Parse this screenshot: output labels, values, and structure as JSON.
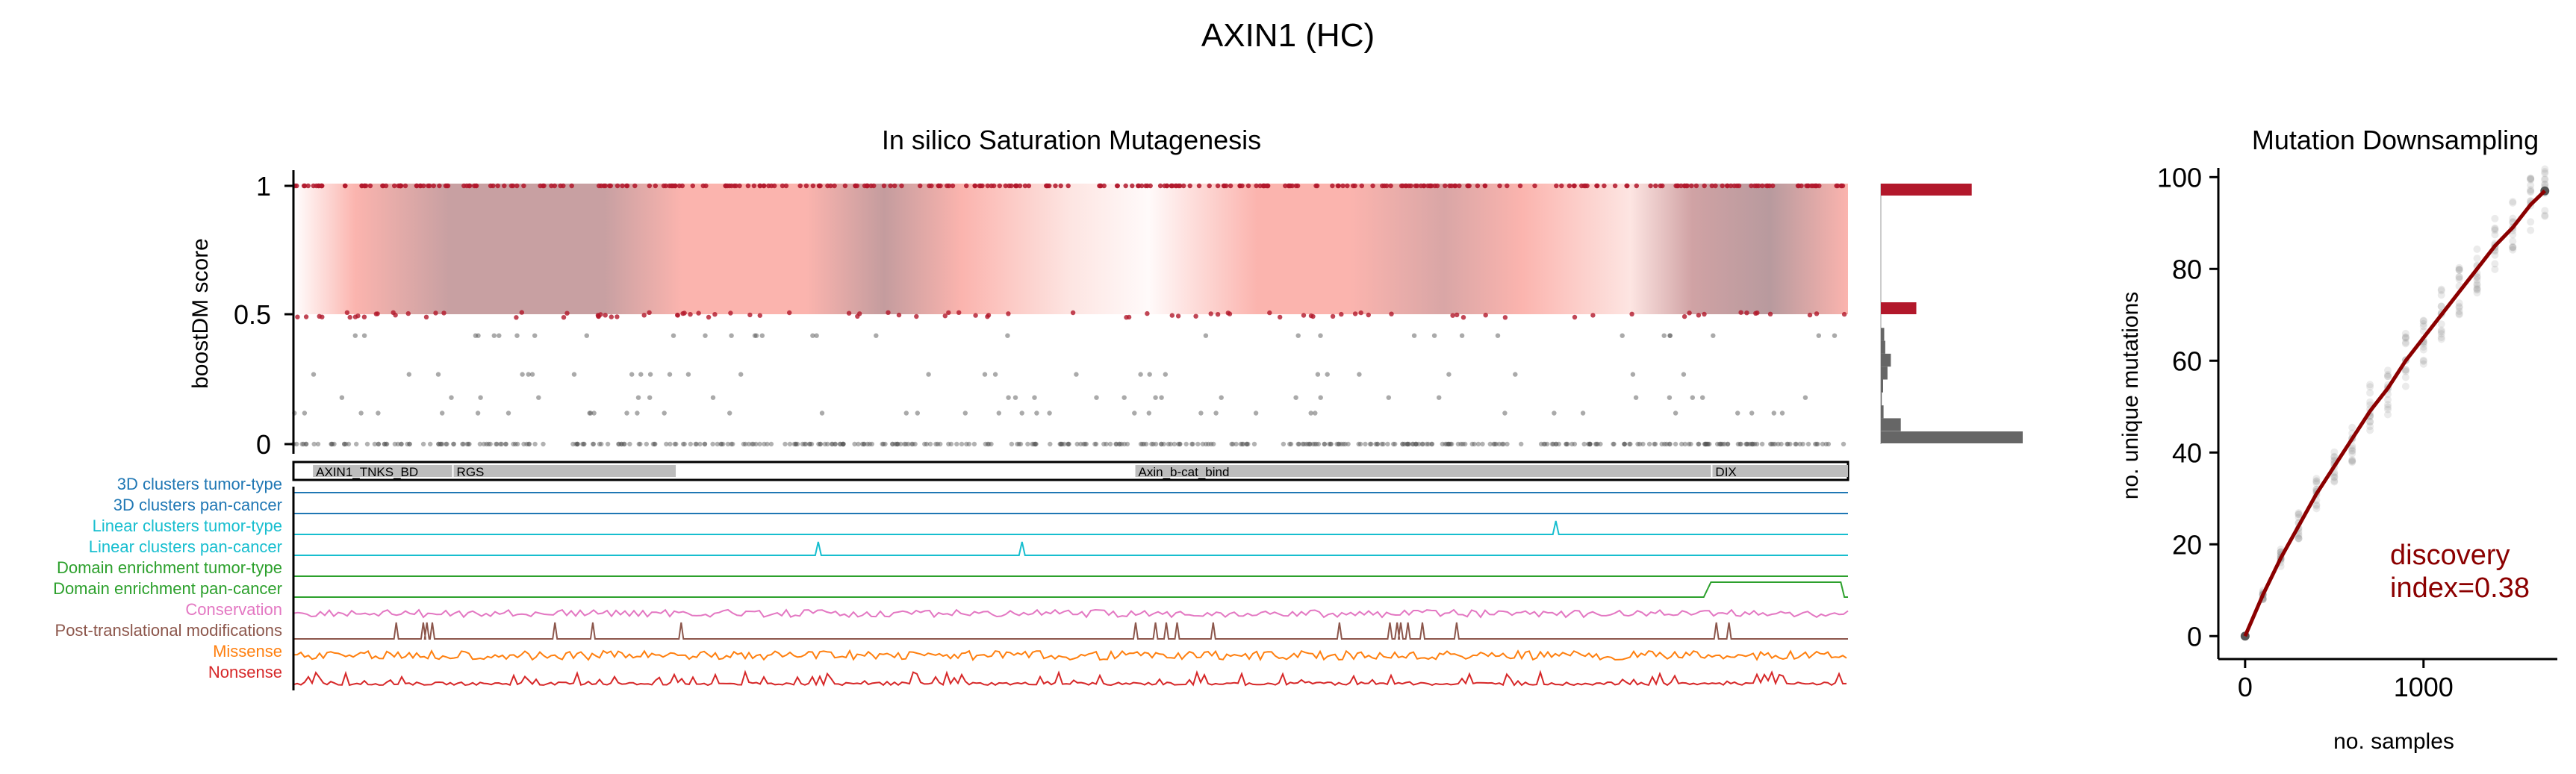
{
  "figure": {
    "title": "AXIN1 (HC)"
  },
  "chart_data": [
    {
      "type": "scatter",
      "panel": "in-silico-saturation-mutagenesis",
      "title": "In silico Saturation Mutagenesis",
      "ylabel": "boostDM score",
      "ylim": [
        0,
        1
      ],
      "yticks": [
        0,
        0.5,
        1
      ],
      "yticklabels": [
        "0",
        "0.5",
        "1"
      ],
      "x_positions": 862,
      "score_levels": [
        0.0,
        0.12,
        0.18,
        0.27,
        0.42,
        0.5,
        1.0
      ],
      "gene_length": 862,
      "domains": [
        {
          "label": "AXIN1_TNKS_BD",
          "start": 10,
          "end": 88
        },
        {
          "label": "RGS",
          "start": 88,
          "end": 212
        },
        {
          "label": "Axin_b-cat_bind",
          "start": 466,
          "end": 786
        },
        {
          "label": "DIX",
          "start": 786,
          "end": 862
        }
      ],
      "tracks": [
        {
          "label": "3D clusters tumor-type",
          "color": "#1f77b4"
        },
        {
          "label": "3D clusters pan-cancer",
          "color": "#1f77b4"
        },
        {
          "label": "Linear clusters tumor-type",
          "color": "#17becf"
        },
        {
          "label": "Linear clusters pan-cancer",
          "color": "#17becf"
        },
        {
          "label": "Domain enrichment tumor-type",
          "color": "#2ca02c"
        },
        {
          "label": "Domain enrichment pan-cancer",
          "color": "#2ca02c"
        },
        {
          "label": "Conservation",
          "color": "#e377c2"
        },
        {
          "label": "Post-translational modifications",
          "color": "#8c564b"
        },
        {
          "label": "Missense",
          "color": "#ff7f0e"
        },
        {
          "label": "Nonsense",
          "color": "#d62728"
        }
      ],
      "histogram": {
        "bins": [
          0,
          0.05,
          0.1,
          0.15,
          0.2,
          0.25,
          0.3,
          0.35,
          0.4,
          0.45,
          0.5,
          1.0
        ],
        "counts": [
          640,
          90,
          12,
          4,
          10,
          30,
          45,
          20,
          15,
          160,
          410
        ]
      },
      "colors": {
        "driver": "#b2182b",
        "passenger": "#555555",
        "band_light": "#fbb4ae",
        "band_dark": "#b8989c"
      }
    },
    {
      "type": "scatter",
      "panel": "mutation-downsampling",
      "title": "Mutation Downsampling",
      "xlabel": "no. samples",
      "ylabel": "no. unique mutations",
      "xlim": [
        -150,
        1750
      ],
      "ylim": [
        -5,
        102
      ],
      "xticks": [
        0,
        1000
      ],
      "xticklabels": [
        "0",
        "1000"
      ],
      "yticks": [
        0,
        20,
        40,
        60,
        80,
        100
      ],
      "yticklabels": [
        "0",
        "20",
        "40",
        "60",
        "80",
        "100"
      ],
      "curve": {
        "x": [
          0,
          100,
          200,
          300,
          400,
          500,
          600,
          700,
          800,
          900,
          1000,
          1100,
          1200,
          1300,
          1400,
          1500,
          1600,
          1680
        ],
        "y": [
          0,
          9,
          17,
          24,
          31,
          37,
          43,
          49,
          54,
          60,
          65,
          70,
          75,
          80,
          85,
          89,
          94,
          97
        ]
      },
      "annotation": [
        "discovery",
        "index=0.38"
      ],
      "colors": {
        "curve": "#8b0000",
        "annotation": "#8b0000",
        "samples": "#777777"
      }
    }
  ]
}
